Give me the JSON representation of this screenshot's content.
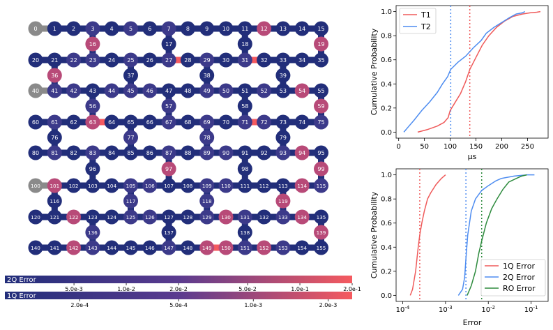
{
  "colors": {
    "low": "#222e7a",
    "mid": "#5a3b8f",
    "high": "#f55a5f",
    "disabled": "#8a8a8a",
    "t1": "#ef5a5a",
    "t2": "#4d8cf0",
    "e1q": "#ef5a5a",
    "e2q": "#4d8cf0",
    "ero": "#2e8b3e"
  },
  "chart_data": [
    {
      "type": "coupling_map",
      "title": "",
      "disabled_qubits": [
        0,
        40,
        100
      ],
      "high_qubits": [
        12,
        16,
        19,
        36,
        54,
        59,
        63,
        94,
        97,
        99,
        101,
        114,
        119,
        122,
        130,
        134,
        139,
        142,
        149,
        150,
        152
      ],
      "mid_qubits": [
        3,
        5,
        7,
        22,
        23,
        25,
        27,
        29,
        31,
        41,
        42,
        44,
        45,
        46,
        49,
        50,
        52,
        56,
        57,
        61,
        67,
        69,
        71,
        72,
        75,
        77,
        78,
        81,
        83,
        87,
        89,
        90,
        93,
        105,
        106,
        109,
        110,
        115,
        117,
        118,
        125,
        126,
        129,
        131,
        133,
        136,
        143,
        147,
        151,
        153
      ],
      "high_edges": [
        [
          27,
          28
        ],
        [
          71,
          72
        ],
        [
          31,
          32
        ],
        [
          149,
          150
        ],
        [
          63,
          64
        ]
      ]
    },
    {
      "type": "colorbar",
      "label": "2Q Error",
      "tick_labels": [
        "5.0e-3",
        "1.0e-2",
        "2.0e-2",
        "5.0e-2",
        "1.0e-1",
        "2.0e-1"
      ],
      "tick_values": [
        0.005,
        0.01,
        0.02,
        0.05,
        0.1,
        0.2
      ],
      "range": [
        0.002,
        0.2
      ],
      "scale": "log"
    },
    {
      "type": "colorbar",
      "label": "1Q Error",
      "tick_labels": [
        "2.0e-4",
        "5.0e-4",
        "1.0e-3",
        "2.0e-3"
      ],
      "tick_values": [
        0.0002,
        0.0005,
        0.001,
        0.002
      ],
      "range": [
        0.0001,
        0.0025
      ],
      "scale": "log"
    },
    {
      "type": "line",
      "xlabel": "µs",
      "ylabel": "Cumulative Probability",
      "xlim": [
        -5,
        290
      ],
      "ylim": [
        -0.05,
        1.05
      ],
      "xticks": [
        0,
        50,
        100,
        150,
        200,
        250
      ],
      "yticks": [
        0.0,
        0.2,
        0.4,
        0.6,
        0.8,
        1.0
      ],
      "legend": [
        "T1",
        "T2"
      ],
      "vlines": [
        {
          "x": 138,
          "series": "T1"
        },
        {
          "x": 101,
          "series": "T2"
        }
      ],
      "series": [
        {
          "name": "T1",
          "x": [
            37,
            55,
            75,
            88,
            96,
            100,
            110,
            120,
            130,
            138,
            150,
            162,
            175,
            190,
            205,
            222,
            240,
            255,
            268,
            275
          ],
          "y": [
            0.0,
            0.02,
            0.05,
            0.08,
            0.12,
            0.18,
            0.25,
            0.32,
            0.42,
            0.52,
            0.62,
            0.72,
            0.8,
            0.87,
            0.92,
            0.96,
            0.98,
            0.99,
            0.995,
            1.0
          ]
        },
        {
          "name": "T2",
          "x": [
            10,
            20,
            30,
            45,
            60,
            75,
            85,
            95,
            101,
            115,
            130,
            145,
            160,
            170,
            185,
            200,
            215,
            228,
            240,
            245
          ],
          "y": [
            0.0,
            0.05,
            0.1,
            0.18,
            0.25,
            0.33,
            0.4,
            0.46,
            0.52,
            0.58,
            0.63,
            0.7,
            0.76,
            0.82,
            0.87,
            0.91,
            0.95,
            0.98,
            0.99,
            1.0
          ]
        }
      ]
    },
    {
      "type": "line",
      "xlabel": "Error",
      "ylabel": "Cumulative Probability",
      "xscale": "log",
      "xlim": [
        7e-05,
        0.25
      ],
      "ylim": [
        -0.05,
        1.05
      ],
      "xtick_labels": [
        "10^-4",
        "10^-3",
        "10^-2",
        "10^-1"
      ],
      "xticks": [
        0.0001,
        0.001,
        0.01,
        0.1
      ],
      "yticks": [
        0.0,
        0.2,
        0.4,
        0.6,
        0.8,
        1.0
      ],
      "legend": [
        "1Q Error",
        "2Q Error",
        "RO Error"
      ],
      "vlines": [
        {
          "x": 0.00025,
          "series": "1Q Error"
        },
        {
          "x": 0.003,
          "series": "2Q Error"
        },
        {
          "x": 0.007,
          "series": "RO Error"
        }
      ],
      "series": [
        {
          "name": "1Q Error",
          "x": [
            0.00015,
            0.00017,
            0.0002,
            0.00023,
            0.00025,
            0.00028,
            0.00032,
            0.00038,
            0.00045,
            0.0006,
            0.0008,
            0.001
          ],
          "y": [
            0.0,
            0.05,
            0.2,
            0.4,
            0.5,
            0.6,
            0.7,
            0.8,
            0.85,
            0.92,
            0.97,
            1.0
          ]
        },
        {
          "name": "2Q Error",
          "x": [
            0.002,
            0.0025,
            0.0028,
            0.003,
            0.0033,
            0.004,
            0.005,
            0.007,
            0.01,
            0.015,
            0.02,
            0.04,
            0.08,
            0.12
          ],
          "y": [
            0.0,
            0.05,
            0.15,
            0.3,
            0.5,
            0.7,
            0.8,
            0.87,
            0.91,
            0.95,
            0.97,
            0.99,
            1.0,
            1.0
          ]
        },
        {
          "name": "RO Error",
          "x": [
            0.0032,
            0.004,
            0.005,
            0.006,
            0.007,
            0.009,
            0.012,
            0.016,
            0.022,
            0.03,
            0.045,
            0.06,
            0.08
          ],
          "y": [
            0.0,
            0.08,
            0.2,
            0.35,
            0.45,
            0.6,
            0.72,
            0.8,
            0.88,
            0.94,
            0.97,
            0.99,
            1.0
          ]
        }
      ]
    }
  ]
}
